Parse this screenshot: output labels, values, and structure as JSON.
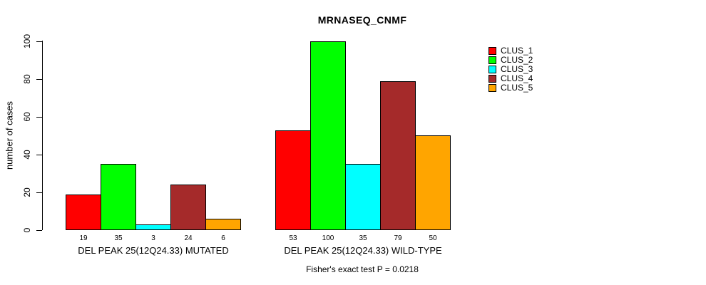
{
  "chart_data": {
    "type": "bar",
    "title": "MRNASEQ_CNMF",
    "ylabel": "number of cases",
    "ylim": [
      0,
      100
    ],
    "yticks": [
      0,
      20,
      40,
      60,
      80,
      100
    ],
    "grid": false,
    "legend_position": "right",
    "bar_value_labels_shown": true,
    "categories": [
      "DEL PEAK 25(12Q24.33) MUTATED",
      "DEL PEAK 25(12Q24.33) WILD-TYPE"
    ],
    "series": [
      {
        "name": "CLUS_1",
        "color": "#FF0000",
        "values": [
          19,
          53
        ]
      },
      {
        "name": "CLUS_2",
        "color": "#00FF00",
        "values": [
          35,
          100
        ]
      },
      {
        "name": "CLUS_3",
        "color": "#00FFFF",
        "values": [
          3,
          35
        ]
      },
      {
        "name": "CLUS_4",
        "color": "#A52A2A",
        "values": [
          24,
          79
        ]
      },
      {
        "name": "CLUS_5",
        "color": "#FFA500",
        "values": [
          6,
          50
        ]
      }
    ],
    "annotation": "Fisher's exact test P = 0.0218",
    "axis_color": "#000000",
    "background_color": "#FFFFFF"
  }
}
